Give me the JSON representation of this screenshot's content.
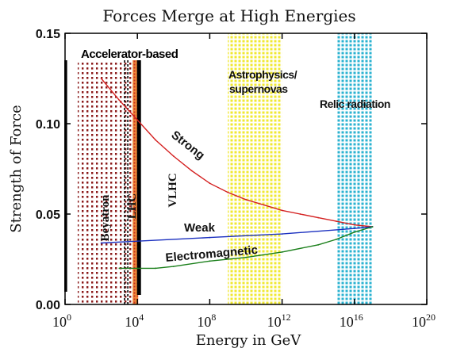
{
  "chart_data": {
    "type": "line",
    "title": "Forces Merge at High Energies",
    "xlabel": "Energy in GeV",
    "ylabel": "Strength of Force",
    "x_scale": "log10",
    "xlim": [
      1,
      1e+20
    ],
    "ylim": [
      0,
      0.15
    ],
    "x_ticks": [
      {
        "base": "10",
        "exp": "0"
      },
      {
        "base": "10",
        "exp": "4"
      },
      {
        "base": "10",
        "exp": "8"
      },
      {
        "base": "10",
        "exp": "12"
      },
      {
        "base": "10",
        "exp": "16"
      },
      {
        "base": "10",
        "exp": "20"
      }
    ],
    "y_ticks": [
      "0.00",
      "0.05",
      "0.10",
      "0.15"
    ],
    "series": [
      {
        "name": "Strong",
        "color": "#d42020",
        "x": [
          100.0,
          1000.0,
          10000.0,
          100000.0,
          1000000.0,
          10000000.0,
          100000000.0,
          1000000000.0,
          10000000000.0,
          100000000000.0,
          1000000000000.0,
          10000000000000.0,
          100000000000000.0,
          1000000000000000.0,
          1e+16,
          1e+17
        ],
        "y": [
          0.125,
          0.113,
          0.102,
          0.091,
          0.082,
          0.074,
          0.067,
          0.062,
          0.058,
          0.055,
          0.052,
          0.05,
          0.048,
          0.046,
          0.044,
          0.043
        ]
      },
      {
        "name": "Weak",
        "color": "#1a2fbf",
        "x": [
          100.0,
          10000.0,
          100000000.0,
          1000000000000.0,
          1e+16,
          1e+17
        ],
        "y": [
          0.034,
          0.035,
          0.037,
          0.039,
          0.042,
          0.043
        ]
      },
      {
        "name": "Electromagnetic",
        "color": "#1a7f1a",
        "x": [
          1000.0,
          10000.0,
          100000.0,
          1000000.0,
          100000000.0,
          10000000000.0,
          1000000000000.0,
          100000000000000.0,
          1000000000000000.0,
          1e+16,
          1e+17
        ],
        "y": [
          0.02,
          0.02,
          0.02,
          0.021,
          0.024,
          0.026,
          0.029,
          0.033,
          0.036,
          0.04,
          0.043
        ]
      }
    ],
    "regions": [
      {
        "label": "Accelerator-based",
        "x_from": 5,
        "x_to": 10000.0,
        "color": "#8b1a1a",
        "pattern": "dots"
      },
      {
        "label": "Astrophysics/ supernovas",
        "x_from": 1000000000.0,
        "x_to": 1000000000000.0,
        "color": "#e8e020",
        "pattern": "dots"
      },
      {
        "label": "Relic radiation",
        "x_from": 1000000000000000.0,
        "x_to": 1e+17,
        "color": "#18a8c8",
        "pattern": "dots"
      }
    ],
    "machines": [
      {
        "label": "Beyatron",
        "x": 3
      },
      {
        "label": "LHC",
        "x": 4000.0
      },
      {
        "label": "VLHC",
        "x": 15000.0
      }
    ],
    "annotations": [
      "Strong",
      "Weak",
      "Electromagnetic"
    ],
    "grid": false,
    "legend": "none"
  }
}
